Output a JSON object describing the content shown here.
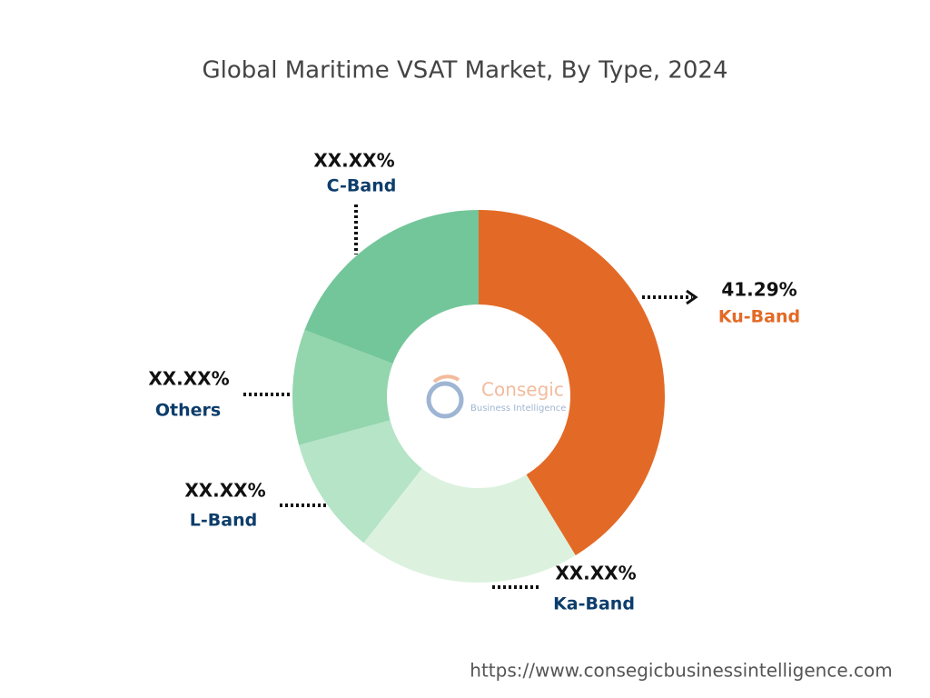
{
  "chart_data": {
    "type": "donut",
    "title": "Global Maritime VSAT Market, By Type, 2024",
    "categories": [
      "Ku-Band",
      "Ka-Band",
      "L-Band",
      "Others",
      "C-Band"
    ],
    "values": [
      41.29,
      19.3,
      10.2,
      10.0,
      19.21
    ],
    "value_labels": [
      "41.29%",
      "XX.XX%",
      "XX.XX%",
      "XX.XX%",
      "XX.XX%"
    ],
    "colors": [
      "#e36a26",
      "#dcf2df",
      "#b5e4c7",
      "#93d5ad",
      "#73c69a"
    ],
    "label_colors": [
      "#e36a26",
      "#0d3d6b",
      "#0d3d6b",
      "#0d3d6b",
      "#0d3d6b"
    ]
  },
  "watermark": {
    "name": "Consegic",
    "tagline": "Business Intelligence"
  },
  "source": "https://www.consegicbusinessintelligence.com"
}
